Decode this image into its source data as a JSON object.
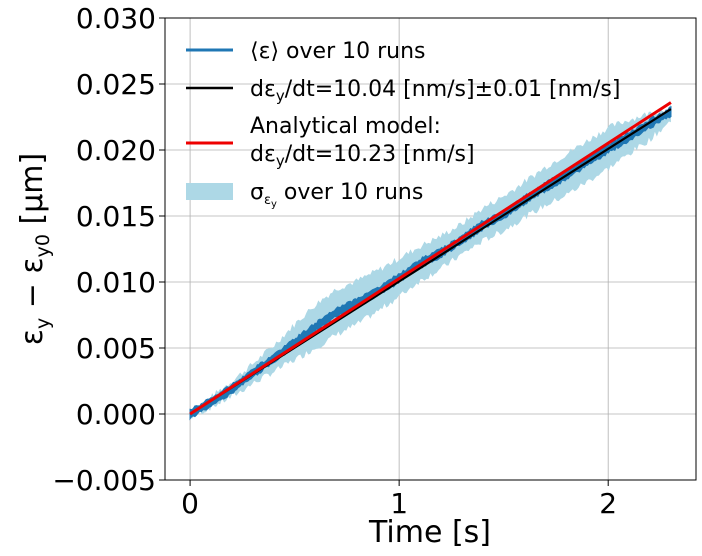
{
  "chart_data": {
    "type": "line",
    "xlabel": "Time [s]",
    "ylabel": "ε_y − ε_y0 [μm]",
    "xlim": [
      -0.12,
      2.42
    ],
    "ylim": [
      -0.005,
      0.03
    ],
    "xticks": [
      0,
      1,
      2
    ],
    "xtick_labels": [
      "0",
      "1",
      "2"
    ],
    "yticks": [
      -0.005,
      0.0,
      0.005,
      0.01,
      0.015,
      0.02,
      0.025,
      0.03
    ],
    "ytick_labels": [
      "−0.005",
      "0.000",
      "0.005",
      "0.010",
      "0.015",
      "0.020",
      "0.025",
      "0.030"
    ],
    "grid": true,
    "legend_position": "upper-left",
    "series": [
      {
        "name": "⟨ε⟩ over 10 runs",
        "style": "noisy-line",
        "color": "#1f77b4",
        "x": [
          0,
          0.1,
          0.2,
          0.3,
          0.4,
          0.5,
          0.6,
          0.7,
          0.8,
          0.9,
          1.0,
          1.1,
          1.2,
          1.3,
          1.4,
          1.5,
          1.6,
          1.7,
          1.8,
          1.9,
          2.0,
          2.1,
          2.2,
          2.3
        ],
        "y": [
          0.0,
          0.0009,
          0.0019,
          0.0031,
          0.0042,
          0.0054,
          0.0066,
          0.0077,
          0.0084,
          0.0093,
          0.0103,
          0.0114,
          0.0122,
          0.0132,
          0.0143,
          0.0151,
          0.0162,
          0.0172,
          0.0181,
          0.0191,
          0.0201,
          0.021,
          0.022,
          0.0229
        ]
      },
      {
        "name": "dε_y/dt=10.04 [nm/s]±0.01 [nm/s]",
        "style": "line",
        "color": "#000000",
        "x": [
          0,
          2.3
        ],
        "y": [
          0.0,
          0.0231
        ]
      },
      {
        "name": "Analytical model: dε_y/dt=10.23 [nm/s]",
        "style": "line",
        "color": "#ee0000",
        "x": [
          0,
          2.3
        ],
        "y": [
          0.0,
          0.0236
        ]
      },
      {
        "name": "σ_εy over 10 runs",
        "style": "band",
        "color": "#add8e6",
        "x": [
          0,
          0.1,
          0.2,
          0.3,
          0.4,
          0.5,
          0.6,
          0.7,
          0.8,
          0.9,
          1.0,
          1.1,
          1.2,
          1.3,
          1.4,
          1.5,
          1.6,
          1.7,
          1.8,
          1.9,
          2.0,
          2.1,
          2.2,
          2.3
        ],
        "upper": [
          0.0002,
          0.0013,
          0.0025,
          0.0038,
          0.0052,
          0.0068,
          0.0083,
          0.0095,
          0.0101,
          0.0109,
          0.0118,
          0.0127,
          0.0135,
          0.0144,
          0.0156,
          0.0165,
          0.0176,
          0.0187,
          0.0197,
          0.0207,
          0.0217,
          0.0223,
          0.0228,
          0.0232
        ],
        "lower": [
          -0.0003,
          0.0005,
          0.0013,
          0.0023,
          0.0032,
          0.0041,
          0.005,
          0.006,
          0.0068,
          0.0078,
          0.0089,
          0.0101,
          0.011,
          0.0121,
          0.0131,
          0.0139,
          0.0149,
          0.0158,
          0.0166,
          0.0176,
          0.0186,
          0.0197,
          0.0208,
          0.0222
        ]
      }
    ]
  },
  "legend": {
    "items": [
      {
        "label": "⟨ε⟩ over 10 runs"
      },
      {
        "label": "dε_y/dt=10.04 [nm/s]±0.01 [nm/s]"
      },
      {
        "label_line1": "Analytical model:",
        "label_line2": "dε_y/dt=10.23 [nm/s]"
      },
      {
        "label": "σ_εy over 10 runs"
      }
    ]
  }
}
